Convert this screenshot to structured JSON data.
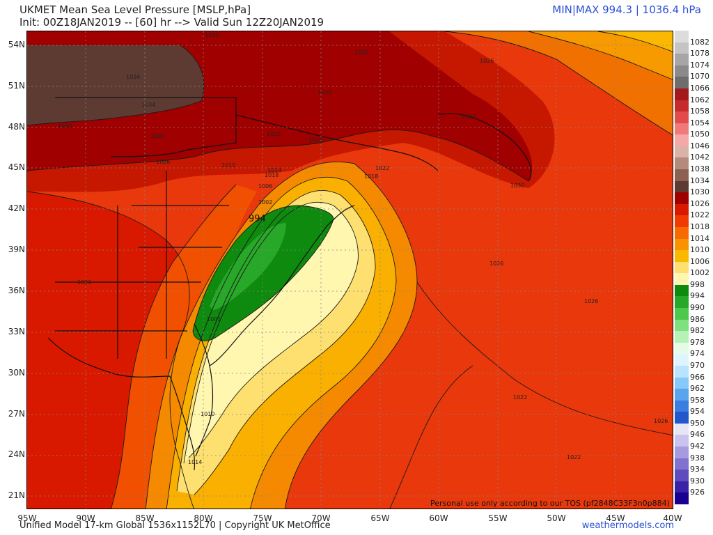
{
  "header": {
    "title": "UKMET Mean Sea Level Pressure [MSLP,hPa]",
    "init_line": "Init: 00Z18JAN2019 -- [60] hr --> Valid Sun 12Z20JAN2019",
    "minmax": "MIN|MAX 994.3 | 1036.4 hPa"
  },
  "map": {
    "lat_labels": [
      "54N",
      "51N",
      "48N",
      "45N",
      "42N",
      "39N",
      "36N",
      "33N",
      "30N",
      "27N",
      "24N",
      "21N"
    ],
    "lon_labels": [
      "95W",
      "90W",
      "85W",
      "80W",
      "75W",
      "70W",
      "65W",
      "60W",
      "55W",
      "50W",
      "45W",
      "40W"
    ],
    "contour_labels": [
      "1030",
      "1030",
      "1034",
      "1034",
      "1030",
      "1030",
      "1026",
      "1026",
      "1026",
      "1022",
      "1022",
      "1018",
      "1014",
      "1010",
      "1006",
      "1002",
      "1018",
      "1026",
      "1030",
      "1026",
      "1026",
      "1022",
      "1026",
      "1022",
      "994",
      "1001",
      "1010",
      "1014",
      "1030",
      "1026"
    ],
    "low_marker": "994",
    "tos_text": "Personal use only according to our TOS (pf2848C33F3n0p884)"
  },
  "legend": {
    "items": [
      {
        "label": "1082",
        "color": "#dcdcdc"
      },
      {
        "label": "1078",
        "color": "#c4c4c4"
      },
      {
        "label": "1074",
        "color": "#a6a6a6"
      },
      {
        "label": "1070",
        "color": "#8a8a8a"
      },
      {
        "label": "1066",
        "color": "#6d6d6d"
      },
      {
        "label": "1062",
        "color": "#a41a1a"
      },
      {
        "label": "1058",
        "color": "#c62a2a"
      },
      {
        "label": "1054",
        "color": "#e34a4a"
      },
      {
        "label": "1050",
        "color": "#f07a7a"
      },
      {
        "label": "1046",
        "color": "#f5a8a8"
      },
      {
        "label": "1042",
        "color": "#d9b2a8"
      },
      {
        "label": "1038",
        "color": "#b48a7c"
      },
      {
        "label": "1034",
        "color": "#8c6152"
      },
      {
        "label": "1030",
        "color": "#5e3b32"
      },
      {
        "label": "1026",
        "color": "#9e0000"
      },
      {
        "label": "1022",
        "color": "#d91800"
      },
      {
        "label": "1018",
        "color": "#f03a00"
      },
      {
        "label": "1014",
        "color": "#f76a00"
      },
      {
        "label": "1010",
        "color": "#fa9200"
      },
      {
        "label": "1006",
        "color": "#fbb800"
      },
      {
        "label": "1002",
        "color": "#fde070"
      },
      {
        "label": "998",
        "color": "#fff6b0"
      },
      {
        "label": "994",
        "color": "#0e8a0e"
      },
      {
        "label": "990",
        "color": "#28a828"
      },
      {
        "label": "986",
        "color": "#4cc84c"
      },
      {
        "label": "982",
        "color": "#7ee07e"
      },
      {
        "label": "978",
        "color": "#b6f2b6"
      },
      {
        "label": "974",
        "color": "#e6fbe6"
      },
      {
        "label": "970",
        "color": "#dff4ff"
      },
      {
        "label": "966",
        "color": "#b8e4ff"
      },
      {
        "label": "962",
        "color": "#86c8f8"
      },
      {
        "label": "958",
        "color": "#5aa4ee"
      },
      {
        "label": "954",
        "color": "#3a7ee0"
      },
      {
        "label": "950",
        "color": "#2457cc"
      },
      {
        "label": "946",
        "color": "#e6e6f4"
      },
      {
        "label": "942",
        "color": "#c9c3ee"
      },
      {
        "label": "938",
        "color": "#a69ae0"
      },
      {
        "label": "934",
        "color": "#8272d0"
      },
      {
        "label": "930",
        "color": "#5e4bbd"
      },
      {
        "label": "926",
        "color": "#3a22a6"
      },
      {
        "label": "",
        "color": "#1a0090"
      }
    ]
  },
  "footer": {
    "left": "Unified Model 17-km Global 1536x1152L70 | Copyright UK MetOffice",
    "right": "weathermodels.com"
  }
}
